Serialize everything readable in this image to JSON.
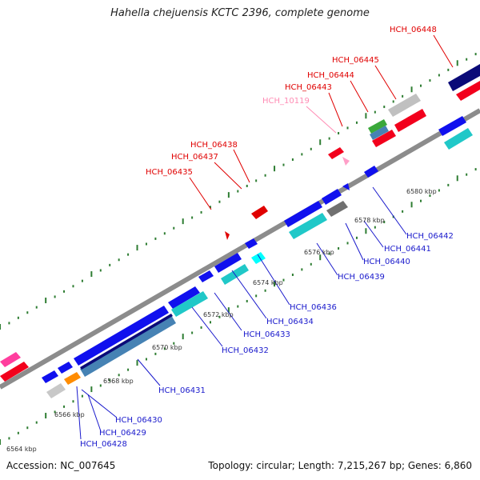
{
  "title": "Hahella chejuensis KCTC 2396, complete genome",
  "footer": {
    "accession": "Accession: NC_007645",
    "summary": "Topology: circular; Length: 7,215,267 bp; Genes: 6,860"
  },
  "colors": {
    "backbone": "#8c8c8c",
    "tick": "#2e7d32",
    "top_label": "#e00000",
    "pink_label": "#ff8cb4",
    "bottom_label": "#1a1acc"
  },
  "scale_labels": [
    "6564 kbp",
    "6566 kbp",
    "6568 kbp",
    "6570 kbp",
    "6572 kbp",
    "6574 kbp",
    "6576 kbp",
    "6578 kbp",
    "6580 kbp"
  ],
  "top_genes": [
    "HCH_06435",
    "HCH_06437",
    "HCH_06438",
    "HCH_10119",
    "HCH_06443",
    "HCH_06444",
    "HCH_06445",
    "HCH_06448"
  ],
  "bottom_genes": [
    "HCH_06428",
    "HCH_06429",
    "HCH_06430",
    "HCH_06431",
    "HCH_06432",
    "HCH_06433",
    "HCH_06434",
    "HCH_06436",
    "HCH_06439",
    "HCH_06440",
    "HCH_06441",
    "HCH_06442"
  ]
}
